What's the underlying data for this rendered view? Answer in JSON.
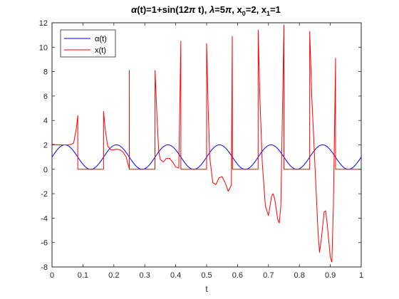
{
  "chart_data": {
    "type": "line",
    "title_parts": [
      {
        "t": "α",
        "style": "italic"
      },
      {
        "t": "(t)=1+sin(12"
      },
      {
        "t": "π",
        "style": "italic"
      },
      {
        "t": " t), "
      },
      {
        "t": "λ",
        "style": "italic"
      },
      {
        "t": "=5"
      },
      {
        "t": "π",
        "style": "italic"
      },
      {
        "t": ", x"
      },
      {
        "t": "0",
        "sub": true
      },
      {
        "t": "=2, x"
      },
      {
        "t": "1",
        "sub": true
      },
      {
        "t": "=1"
      }
    ],
    "xlabel": "t",
    "ylabel": "",
    "xlim": [
      0,
      1
    ],
    "ylim": [
      -8,
      12
    ],
    "xticks": [
      0,
      0.1,
      0.2,
      0.3,
      0.4,
      0.5,
      0.6,
      0.7,
      0.8,
      0.9,
      1
    ],
    "xtick_labels": [
      "0",
      "0.1",
      "0.2",
      "0.3",
      "0.4",
      "0.5",
      "0.6",
      "0.7",
      "0.8",
      "0.9",
      "1"
    ],
    "yticks": [
      -8,
      -6,
      -4,
      -2,
      0,
      2,
      4,
      6,
      8,
      10,
      12
    ],
    "ytick_labels": [
      "-8",
      "-6",
      "-4",
      "-2",
      "0",
      "2",
      "4",
      "6",
      "8",
      "10",
      "12"
    ],
    "grid": false,
    "legend_position": "top-left",
    "series": [
      {
        "name": "α(t)",
        "color": "#0000ff",
        "formula": "1+sin(12*pi*t)"
      },
      {
        "name": "x(t)",
        "color": "#ff0000",
        "points": [
          [
            0,
            2.05
          ],
          [
            0.01,
            2.02
          ],
          [
            0.02,
            2.0
          ],
          [
            0.03,
            2.0
          ],
          [
            0.04,
            2.0
          ],
          [
            0.05,
            2.0
          ],
          [
            0.06,
            2.02
          ],
          [
            0.07,
            2.15
          ],
          [
            0.079,
            3.4
          ],
          [
            0.0833,
            4.4
          ],
          [
            0.0833,
            0
          ],
          [
            0.1,
            0
          ],
          [
            0.12,
            0
          ],
          [
            0.14,
            0
          ],
          [
            0.16,
            0
          ],
          [
            0.1667,
            0
          ],
          [
            0.1667,
            4.75
          ],
          [
            0.172,
            3.3
          ],
          [
            0.18,
            1.9
          ],
          [
            0.19,
            1.6
          ],
          [
            0.2,
            1.6
          ],
          [
            0.21,
            1.65
          ],
          [
            0.22,
            1.6
          ],
          [
            0.23,
            1.4
          ],
          [
            0.24,
            1.0
          ],
          [
            0.245,
            0.5
          ],
          [
            0.25,
            0.05
          ],
          [
            0.25,
            0
          ],
          [
            0.2501,
            8.1
          ],
          [
            0.2501,
            0
          ],
          [
            0.27,
            0
          ],
          [
            0.29,
            0
          ],
          [
            0.31,
            0
          ],
          [
            0.333,
            0
          ],
          [
            0.3333,
            8.1
          ],
          [
            0.34,
            4.0
          ],
          [
            0.345,
            1.5
          ],
          [
            0.35,
            0.8
          ],
          [
            0.36,
            0.6
          ],
          [
            0.37,
            0.9
          ],
          [
            0.38,
            0.9
          ],
          [
            0.39,
            0.6
          ],
          [
            0.4,
            0.2
          ],
          [
            0.41,
            0.1
          ],
          [
            0.4167,
            10.5
          ],
          [
            0.4167,
            0
          ],
          [
            0.44,
            0
          ],
          [
            0.46,
            0
          ],
          [
            0.48,
            0
          ],
          [
            0.4999,
            0
          ],
          [
            0.5,
            10.3
          ],
          [
            0.505,
            5.0
          ],
          [
            0.51,
            1.0
          ],
          [
            0.52,
            -1.1
          ],
          [
            0.53,
            -1.25
          ],
          [
            0.54,
            -0.7
          ],
          [
            0.55,
            -0.6
          ],
          [
            0.56,
            -1.1
          ],
          [
            0.57,
            -1.8
          ],
          [
            0.58,
            -1.3
          ],
          [
            0.583,
            10.9
          ],
          [
            0.5834,
            0
          ],
          [
            0.61,
            0
          ],
          [
            0.63,
            0
          ],
          [
            0.65,
            0
          ],
          [
            0.6665,
            0
          ],
          [
            0.6667,
            11.4
          ],
          [
            0.672,
            6.0
          ],
          [
            0.68,
            0.5
          ],
          [
            0.69,
            -3.0
          ],
          [
            0.7,
            -3.8
          ],
          [
            0.71,
            -2.2
          ],
          [
            0.715,
            -2.0
          ],
          [
            0.72,
            -2.4
          ],
          [
            0.73,
            -4.1
          ],
          [
            0.735,
            -4.4
          ],
          [
            0.74,
            -3.0
          ],
          [
            0.75,
            11.8
          ],
          [
            0.7501,
            0
          ],
          [
            0.77,
            0
          ],
          [
            0.79,
            0
          ],
          [
            0.81,
            0
          ],
          [
            0.8332,
            0
          ],
          [
            0.8334,
            11.3
          ],
          [
            0.84,
            6.0
          ],
          [
            0.85,
            0.5
          ],
          [
            0.86,
            -5.0
          ],
          [
            0.865,
            -6.8
          ],
          [
            0.872,
            -5.5
          ],
          [
            0.88,
            -3.5
          ],
          [
            0.885,
            -3.4
          ],
          [
            0.89,
            -4.5
          ],
          [
            0.9,
            -7.2
          ],
          [
            0.905,
            -7.6
          ],
          [
            0.91,
            -3.0
          ],
          [
            0.917,
            9.1
          ],
          [
            0.9168,
            0
          ],
          [
            0.94,
            0
          ],
          [
            0.96,
            0
          ],
          [
            0.98,
            0
          ],
          [
            1.0,
            0
          ]
        ]
      }
    ]
  }
}
